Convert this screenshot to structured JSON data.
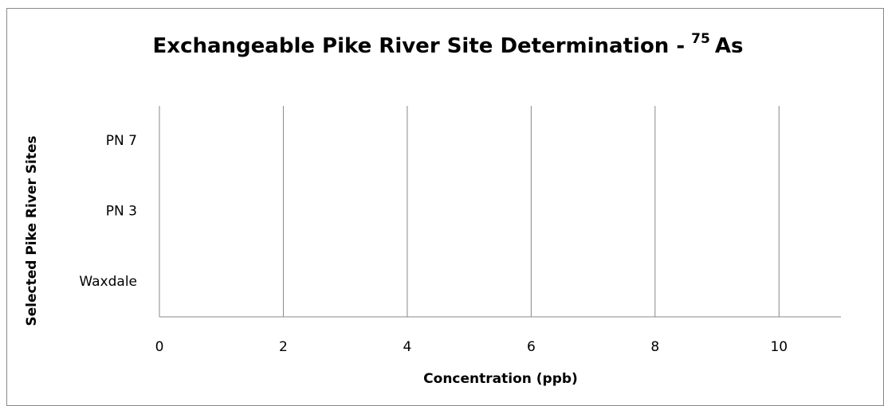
{
  "chart_data": {
    "type": "bar",
    "orientation": "horizontal",
    "title": "Exchangeable Pike River Site Determination -",
    "title_superscript": "75",
    "title_end": "As",
    "categories": [
      "Waxdale",
      "PN 3",
      "PN 7"
    ],
    "values": [
      0,
      0,
      0
    ],
    "color": "#4f81bd",
    "xlim": [
      0,
      11
    ],
    "xticks": [
      0,
      2,
      4,
      6,
      8,
      10
    ],
    "grid": true,
    "x_label": "Concentration (ppb)",
    "y_label": "Selected Pike River Sites"
  }
}
